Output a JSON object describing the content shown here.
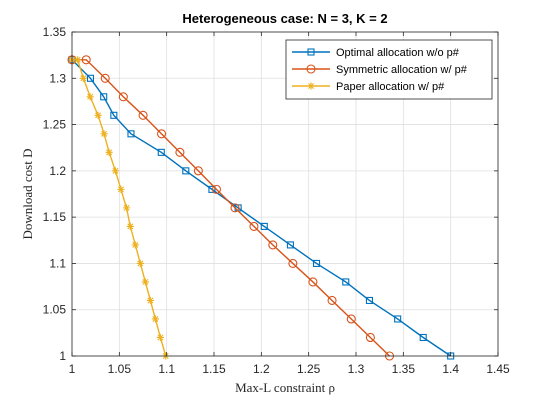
{
  "chart_data": {
    "type": "line",
    "title": "Heterogeneous case: N = 3, K = 2",
    "xlabel": "Max-L constraint ρ",
    "ylabel": "Download cost D",
    "xlim": [
      1,
      1.45
    ],
    "ylim": [
      1,
      1.35
    ],
    "xticks": [
      "1",
      "1.05",
      "1.1",
      "1.15",
      "1.2",
      "1.25",
      "1.3",
      "1.35",
      "1.4",
      "1.45"
    ],
    "yticks": [
      "1",
      "1.05",
      "1.1",
      "1.15",
      "1.2",
      "1.25",
      "1.3",
      "1.35"
    ],
    "grid": true,
    "legend_position": "top-right",
    "series": [
      {
        "name": "Optimal allocation w/o p#",
        "color": "#0072BD",
        "marker": "square",
        "x": [
          1,
          1.0195,
          1.0335,
          1.0442,
          1.0623,
          1.0943,
          1.1202,
          1.1478,
          1.1755,
          1.2031,
          1.2307,
          1.2583,
          1.2892,
          1.3142,
          1.344,
          1.371,
          1.4
        ],
        "y": [
          1.32,
          1.3,
          1.28,
          1.26,
          1.24,
          1.22,
          1.2,
          1.18,
          1.16,
          1.14,
          1.12,
          1.1,
          1.08,
          1.06,
          1.04,
          1.02,
          1.0
        ]
      },
      {
        "name": "Symmetric allocation w/ p#",
        "color": "#D95319",
        "marker": "circle",
        "x": [
          1,
          1.015,
          1.0351,
          1.0542,
          1.0751,
          1.0946,
          1.114,
          1.1335,
          1.1526,
          1.1722,
          1.1922,
          1.2121,
          1.2333,
          1.2545,
          1.2747,
          1.295,
          1.3152,
          1.3354
        ],
        "y": [
          1.32,
          1.32,
          1.3,
          1.28,
          1.26,
          1.24,
          1.22,
          1.2,
          1.18,
          1.16,
          1.14,
          1.12,
          1.1,
          1.08,
          1.06,
          1.04,
          1.02,
          1.0
        ]
      },
      {
        "name": "Paper allocation w/ p#",
        "color": "#EDB120",
        "marker": "asterisk",
        "x": [
          1,
          1.006,
          1.012,
          1.0192,
          1.0275,
          1.0339,
          1.0392,
          1.0459,
          1.0517,
          1.0576,
          1.0616,
          1.0669,
          1.0722,
          1.0775,
          1.0828,
          1.0881,
          1.0934,
          1.099
        ],
        "y": [
          1.32,
          1.32,
          1.3,
          1.28,
          1.26,
          1.24,
          1.22,
          1.2,
          1.18,
          1.16,
          1.14,
          1.12,
          1.1,
          1.08,
          1.06,
          1.04,
          1.02,
          1.0
        ]
      }
    ]
  }
}
